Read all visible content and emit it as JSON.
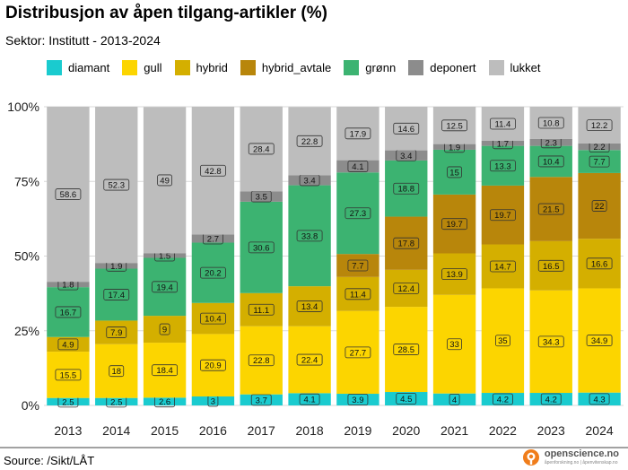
{
  "title": "Distribusjon av åpen tilgang-artikler (%)",
  "subtitle": "Sektor: Institutt - 2013-2024",
  "source": "Source: /Sikt/LÅT",
  "logo": {
    "name": "openscience.no",
    "tagline": "åpenforskning.no | åpenvitenskap.no"
  },
  "chart_data": {
    "type": "bar",
    "stacked": true,
    "title": "Distribusjon av åpen tilgang-artikler (%)",
    "subtitle": "Sektor: Institutt - 2013-2024",
    "xlabel": "",
    "ylabel": "",
    "ylim": [
      0,
      100
    ],
    "yticks": [
      "0%",
      "25%",
      "50%",
      "75%",
      "100%"
    ],
    "grid": true,
    "legend_position": "top",
    "categories": [
      "2013",
      "2014",
      "2015",
      "2016",
      "2017",
      "2018",
      "2019",
      "2020",
      "2021",
      "2022",
      "2023",
      "2024"
    ],
    "series": [
      {
        "name": "diamant",
        "color": "#1ACBCF",
        "values": [
          2.5,
          2.5,
          2.6,
          3,
          3.7,
          4.1,
          3.9,
          4.5,
          4,
          4.2,
          4.2,
          4.3
        ],
        "labels": [
          "2.5",
          "2.5",
          "2.6",
          "3",
          "3.7",
          "4.1",
          "3.9",
          "4.5",
          "4",
          "4.2",
          "4.2",
          "4.3"
        ]
      },
      {
        "name": "gull",
        "color": "#FCD500",
        "values": [
          15.5,
          18,
          18.4,
          20.9,
          22.8,
          22.4,
          27.7,
          28.5,
          33,
          35,
          34.3,
          34.9
        ],
        "labels": [
          "15.5",
          "18",
          "18.4",
          "20.9",
          "22.8",
          "22.4",
          "27.7",
          "28.5",
          "33",
          "35",
          "34.3",
          "34.9"
        ]
      },
      {
        "name": "hybrid",
        "color": "#D4AF00",
        "values": [
          4.9,
          7.9,
          9,
          10.4,
          11.1,
          13.4,
          11.4,
          12.4,
          13.9,
          14.7,
          16.5,
          16.6
        ],
        "labels": [
          "4.9",
          "7.9",
          "9",
          "10.4",
          "11.1",
          "13.4",
          "11.4",
          "12.4",
          "13.9",
          "14.7",
          "16.5",
          "16.6"
        ]
      },
      {
        "name": "hybrid_avtale",
        "color": "#B8860B",
        "values": [
          0,
          0,
          0,
          0,
          0,
          0,
          7.7,
          17.8,
          19.7,
          19.7,
          21.5,
          22
        ],
        "labels": [
          "",
          "",
          "",
          "",
          "",
          "",
          "7.7",
          "17.8",
          "19.7",
          "19.7",
          "21.5",
          "22"
        ]
      },
      {
        "name": "grønn",
        "color": "#3CB371",
        "values": [
          16.7,
          17.4,
          19.4,
          20.2,
          30.6,
          33.8,
          27.3,
          18.8,
          15,
          13.3,
          10.4,
          7.7
        ],
        "labels": [
          "16.7",
          "17.4",
          "19.4",
          "20.2",
          "30.6",
          "33.8",
          "27.3",
          "18.8",
          "15",
          "13.3",
          "10.4",
          "7.7"
        ]
      },
      {
        "name": "deponert",
        "color": "#8C8C8C",
        "values": [
          1.8,
          1.9,
          1.5,
          2.7,
          3.5,
          3.4,
          4.1,
          3.4,
          1.9,
          1.7,
          2.3,
          2.2
        ],
        "labels": [
          "1.8",
          "1.9",
          "1.5",
          "2.7",
          "3.5",
          "3.4",
          "4.1",
          "3.4",
          "1.9",
          "1.7",
          "2.3",
          "2.2"
        ]
      },
      {
        "name": "lukket",
        "color": "#BDBDBD",
        "values": [
          58.6,
          52.3,
          49,
          42.8,
          28.4,
          22.8,
          17.9,
          14.6,
          12.5,
          11.4,
          10.8,
          12.2
        ],
        "labels": [
          "58.6",
          "52.3",
          "49",
          "42.8",
          "28.4",
          "22.8",
          "17.9",
          "14.6",
          "12.5",
          "11.4",
          "10.8",
          "12.2"
        ]
      }
    ]
  }
}
